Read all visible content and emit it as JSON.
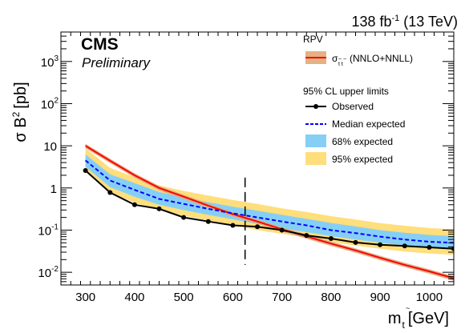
{
  "header": {
    "lumi": "138 fb",
    "lumi_exp": "-1",
    "energy": "(13 TeV)",
    "experiment": "CMS",
    "status": "Preliminary"
  },
  "chart_data": {
    "type": "line",
    "xlabel": "m",
    "xlabel_sub": "t",
    "xlabel_sub_accent": "~",
    "xlabel_unit": "[GeV]",
    "ylabel": "σ B",
    "ylabel_exp": "2",
    "ylabel_unit": "[pb]",
    "xlim": [
      250,
      1050
    ],
    "ylim": [
      0.005,
      5000
    ],
    "yscale": "log",
    "x_ticks": [
      300,
      400,
      500,
      600,
      700,
      800,
      900,
      1000
    ],
    "y_ticks": [
      {
        "value": 0.01,
        "base": "10",
        "exp": "-2"
      },
      {
        "value": 0.1,
        "base": "10",
        "exp": "-1"
      },
      {
        "value": 1,
        "base": "1",
        "exp": ""
      },
      {
        "value": 10,
        "base": "10",
        "exp": ""
      },
      {
        "value": 100,
        "base": "10",
        "exp": "2"
      },
      {
        "value": 1000,
        "base": "10",
        "exp": "3"
      }
    ],
    "grid": false,
    "x_points": [
      300,
      350,
      400,
      450,
      500,
      550,
      600,
      650,
      700,
      750,
      800,
      850,
      900,
      950,
      1000,
      1050
    ],
    "observed": [
      2.6,
      0.78,
      0.4,
      0.32,
      0.2,
      0.16,
      0.13,
      0.12,
      0.1,
      0.075,
      0.063,
      0.051,
      0.045,
      0.042,
      0.039,
      0.036
    ],
    "expected": [
      4.5,
      1.5,
      0.9,
      0.55,
      0.42,
      0.32,
      0.25,
      0.2,
      0.16,
      0.13,
      0.1,
      0.085,
      0.07,
      0.06,
      0.053,
      0.05
    ],
    "band68": {
      "low": [
        3.2,
        1.05,
        0.62,
        0.4,
        0.3,
        0.23,
        0.18,
        0.14,
        0.11,
        0.09,
        0.072,
        0.06,
        0.05,
        0.043,
        0.038,
        0.036
      ],
      "high": [
        6.3,
        2.1,
        1.3,
        0.8,
        0.6,
        0.46,
        0.36,
        0.29,
        0.23,
        0.185,
        0.148,
        0.122,
        0.1,
        0.087,
        0.077,
        0.072
      ]
    },
    "band95": {
      "low": [
        2.4,
        0.78,
        0.45,
        0.3,
        0.22,
        0.17,
        0.13,
        0.1,
        0.082,
        0.066,
        0.052,
        0.043,
        0.036,
        0.031,
        0.028,
        0.026
      ],
      "high": [
        8.8,
        3.0,
        1.8,
        1.15,
        0.85,
        0.66,
        0.52,
        0.42,
        0.33,
        0.27,
        0.215,
        0.178,
        0.146,
        0.127,
        0.112,
        0.105
      ]
    },
    "theory_x": [
      300,
      350,
      400,
      450,
      500,
      550,
      600,
      650,
      700,
      750,
      800,
      850,
      900,
      950,
      1000,
      1050
    ],
    "theory": [
      10.0,
      4.4,
      2.0,
      1.0,
      0.62,
      0.38,
      0.24,
      0.16,
      0.105,
      0.071,
      0.048,
      0.033,
      0.022,
      0.015,
      0.0105,
      0.0072
    ],
    "theory_band_frac": 0.12,
    "vertical_line_x": 625,
    "legend": {
      "header": "RPV",
      "theory_label": "(NNLO+NNLL)",
      "theory_symbol": "σ",
      "theory_sub": "t t",
      "theory_sub_accent": "~ ~",
      "limits_header": "95% CL upper limits",
      "observed": "Observed",
      "median": "Median expected",
      "band68": "68% expected",
      "band95": "95% expected",
      "placement": "top-right"
    },
    "colors": {
      "observed": "#000000",
      "expected": "#0000ff",
      "band68": "#85cff6",
      "band95": "#ffde7c",
      "theory": "#ff0000",
      "theory_band": "#dcab7c",
      "legend_theory_fill": "#e4b183"
    }
  }
}
